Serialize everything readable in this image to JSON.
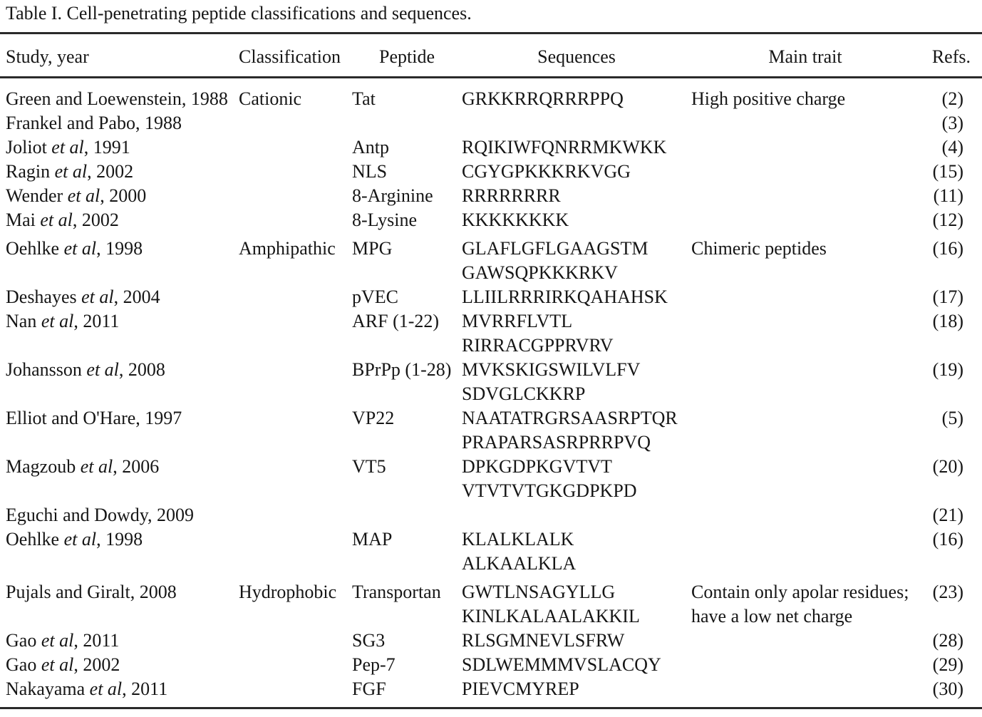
{
  "title": "Table I. Cell-penetrating peptide classifications and sequences.",
  "columns": [
    "Study, year",
    "Classification",
    "Peptide",
    "Sequences",
    "Main trait",
    "Refs."
  ],
  "rows": [
    {
      "study_pre": "Green and Loewenstein, 1988",
      "study_italic": "",
      "study_post": "",
      "classification": "Cationic",
      "peptide": "Tat",
      "sequences": [
        "GRKKRRQRRRPPQ"
      ],
      "main_trait": [
        "High positive charge"
      ],
      "ref": "(2)",
      "group_start": false
    },
    {
      "study_pre": "Frankel and Pabo, 1988",
      "study_italic": "",
      "study_post": "",
      "classification": "",
      "peptide": "",
      "sequences": [],
      "main_trait": [],
      "ref": "(3)",
      "group_start": false
    },
    {
      "study_pre": "Joliot ",
      "study_italic": "et al",
      "study_post": ", 1991",
      "classification": "",
      "peptide": "Antp",
      "sequences": [
        "RQIKIWFQNRRMKWKK"
      ],
      "main_trait": [],
      "ref": "(4)",
      "group_start": false
    },
    {
      "study_pre": "Ragin ",
      "study_italic": "et al",
      "study_post": ", 2002",
      "classification": "",
      "peptide": "NLS",
      "sequences": [
        "CGYGPKKKRKVGG"
      ],
      "main_trait": [],
      "ref": "(15)",
      "group_start": false
    },
    {
      "study_pre": "Wender ",
      "study_italic": "et al",
      "study_post": ", 2000",
      "classification": "",
      "peptide": "8-Arginine",
      "sequences": [
        "RRRRRRRR"
      ],
      "main_trait": [],
      "ref": "(11)",
      "group_start": false
    },
    {
      "study_pre": "Mai ",
      "study_italic": "et al",
      "study_post": ", 2002",
      "classification": "",
      "peptide": "8-Lysine",
      "sequences": [
        "KKKKKKKK"
      ],
      "main_trait": [],
      "ref": "(12)",
      "group_start": false
    },
    {
      "study_pre": "Oehlke ",
      "study_italic": "et al",
      "study_post": ", 1998",
      "classification": "Amphipathic",
      "peptide": "MPG",
      "sequences": [
        "GLAFLGFLGAAGSTM",
        "GAWSQPKKKRKV"
      ],
      "main_trait": [
        "Chimeric peptides"
      ],
      "ref": "(16)",
      "group_start": true
    },
    {
      "study_pre": "Deshayes ",
      "study_italic": "et al",
      "study_post": ", 2004",
      "classification": "",
      "peptide": "pVEC",
      "sequences": [
        "LLIILRRRIRKQAHAHSK"
      ],
      "main_trait": [],
      "ref": "(17)",
      "group_start": false
    },
    {
      "study_pre": "Nan ",
      "study_italic": "et al",
      "study_post": ", 2011",
      "classification": "",
      "peptide": "ARF (1-22)",
      "sequences": [
        "MVRRFLVTL",
        "RIRRACGPPRVRV"
      ],
      "main_trait": [],
      "ref": "(18)",
      "group_start": false
    },
    {
      "study_pre": "Johansson ",
      "study_italic": "et al",
      "study_post": ", 2008",
      "classification": "",
      "peptide": "BPrPp (1-28)",
      "sequences": [
        "MVKSKIGSWILVLFV",
        "SDVGLCKKRP"
      ],
      "main_trait": [],
      "ref": "(19)",
      "group_start": false
    },
    {
      "study_pre": "Elliot and O'Hare, 1997",
      "study_italic": "",
      "study_post": "",
      "classification": "",
      "peptide": "VP22",
      "sequences": [
        "NAATATRGRSAASRPTQR",
        "PRAPARSASRPRRPVQ"
      ],
      "main_trait": [],
      "ref": "(5)",
      "group_start": false
    },
    {
      "study_pre": "Magzoub ",
      "study_italic": "et al",
      "study_post": ", 2006",
      "classification": "",
      "peptide": "VT5",
      "sequences": [
        "DPKGDPKGVTVT",
        "VTVTVTGKGDPKPD"
      ],
      "main_trait": [],
      "ref": "(20)",
      "group_start": false
    },
    {
      "study_pre": "Eguchi and Dowdy, 2009",
      "study_italic": "",
      "study_post": "",
      "classification": "",
      "peptide": "",
      "sequences": [],
      "main_trait": [],
      "ref": "(21)",
      "group_start": false
    },
    {
      "study_pre": "Oehlke ",
      "study_italic": "et al",
      "study_post": ", 1998",
      "classification": "",
      "peptide": "MAP",
      "sequences": [
        "KLALKLALK",
        "ALKAALKLA"
      ],
      "main_trait": [],
      "ref": "(16)",
      "group_start": false
    },
    {
      "study_pre": "Pujals and Giralt, 2008",
      "study_italic": "",
      "study_post": "",
      "classification": "Hydrophobic",
      "peptide": "Transportan",
      "sequences": [
        "GWTLNSAGYLLG",
        "KINLKALAALAKKIL"
      ],
      "main_trait": [
        "Contain only apolar residues;",
        "have a low net charge"
      ],
      "ref": "(23)",
      "group_start": true
    },
    {
      "study_pre": "Gao ",
      "study_italic": "et al",
      "study_post": ", 2011",
      "classification": "",
      "peptide": "SG3",
      "sequences": [
        "RLSGMNEVLSFRW"
      ],
      "main_trait": [],
      "ref": "(28)",
      "group_start": false
    },
    {
      "study_pre": "Gao ",
      "study_italic": "et al",
      "study_post": ", 2002",
      "classification": "",
      "peptide": "Pep-7",
      "sequences": [
        "SDLWEMMMVSLACQY"
      ],
      "main_trait": [],
      "ref": "(29)",
      "group_start": false
    },
    {
      "study_pre": "Nakayama ",
      "study_italic": "et al",
      "study_post": ", 2011",
      "classification": "",
      "peptide": "FGF",
      "sequences": [
        "PIEVCMYREP"
      ],
      "main_trait": [],
      "ref": "(30)",
      "group_start": false
    }
  ]
}
